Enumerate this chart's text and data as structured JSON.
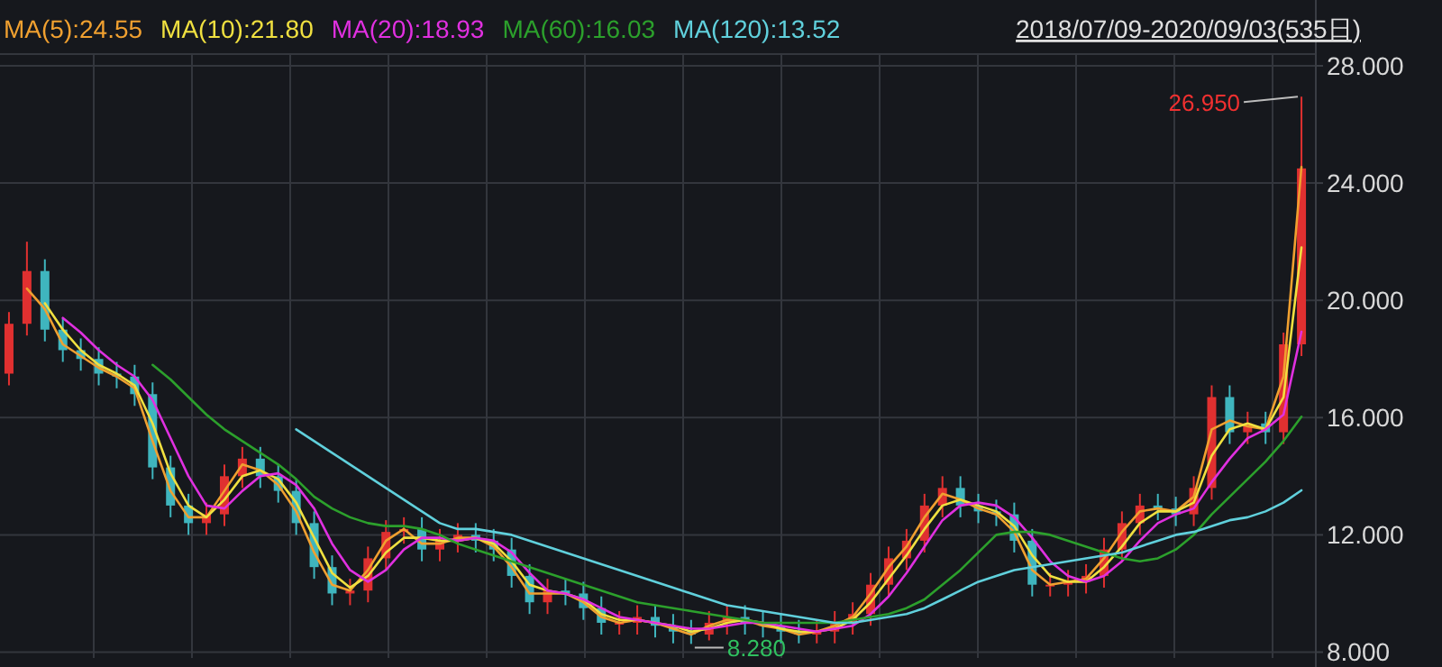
{
  "chart_data": {
    "type": "candlestick",
    "categories": [
      null,
      null,
      null,
      null,
      null,
      null,
      null,
      null,
      null,
      null,
      null,
      null,
      null,
      null,
      null,
      null,
      null,
      null,
      null,
      null,
      null,
      null,
      null,
      null,
      null,
      null,
      null,
      null,
      null,
      null,
      null,
      null,
      null,
      null,
      null,
      null,
      null,
      null,
      null,
      null,
      null,
      null,
      null,
      null,
      null,
      null,
      null,
      null,
      null,
      null,
      null,
      null,
      null,
      null,
      null,
      null,
      null,
      null,
      null,
      null,
      null,
      null,
      null,
      null,
      null,
      null,
      null,
      null,
      null,
      null,
      null,
      null,
      null
    ],
    "ohlc": [
      [
        17.5,
        19.6,
        17.1,
        19.2
      ],
      [
        19.2,
        22.0,
        18.8,
        21.0
      ],
      [
        21.0,
        21.4,
        18.6,
        19.0
      ],
      [
        19.0,
        19.4,
        17.9,
        18.3
      ],
      [
        18.3,
        18.7,
        17.6,
        18.0
      ],
      [
        18.0,
        18.4,
        17.1,
        17.5
      ],
      [
        17.5,
        17.9,
        17.0,
        17.4
      ],
      [
        17.4,
        17.8,
        16.4,
        16.8
      ],
      [
        16.8,
        17.2,
        13.9,
        14.3
      ],
      [
        14.3,
        14.7,
        12.6,
        13.0
      ],
      [
        13.0,
        13.4,
        12.0,
        12.4
      ],
      [
        12.4,
        13.1,
        12.0,
        12.7
      ],
      [
        12.7,
        14.4,
        12.3,
        14.0
      ],
      [
        14.0,
        15.0,
        13.6,
        14.6
      ],
      [
        14.6,
        15.0,
        13.6,
        14.0
      ],
      [
        14.0,
        14.4,
        13.1,
        13.5
      ],
      [
        13.5,
        13.9,
        12.0,
        12.4
      ],
      [
        12.4,
        12.8,
        10.5,
        10.9
      ],
      [
        10.9,
        11.3,
        9.6,
        10.0
      ],
      [
        10.0,
        10.5,
        9.6,
        10.1
      ],
      [
        10.1,
        11.6,
        9.7,
        11.2
      ],
      [
        11.2,
        12.5,
        10.8,
        12.1
      ],
      [
        12.1,
        12.6,
        11.7,
        12.2
      ],
      [
        12.2,
        12.6,
        11.1,
        11.5
      ],
      [
        11.5,
        12.2,
        11.1,
        11.8
      ],
      [
        11.8,
        12.4,
        11.4,
        12.0
      ],
      [
        12.0,
        12.4,
        11.4,
        11.8
      ],
      [
        11.8,
        12.2,
        11.1,
        11.5
      ],
      [
        11.5,
        11.9,
        10.2,
        10.6
      ],
      [
        10.6,
        11.0,
        9.3,
        9.7
      ],
      [
        9.7,
        10.5,
        9.3,
        10.1
      ],
      [
        10.1,
        10.5,
        9.6,
        10.0
      ],
      [
        10.0,
        10.4,
        9.1,
        9.5
      ],
      [
        9.5,
        9.9,
        8.6,
        9.0
      ],
      [
        9.0,
        9.4,
        8.6,
        9.0
      ],
      [
        9.0,
        9.6,
        8.6,
        9.2
      ],
      [
        9.2,
        9.6,
        8.5,
        8.9
      ],
      [
        8.9,
        9.3,
        8.3,
        8.7
      ],
      [
        8.7,
        9.1,
        8.28,
        8.6
      ],
      [
        8.6,
        9.4,
        8.4,
        9.0
      ],
      [
        9.0,
        9.6,
        8.6,
        9.2
      ],
      [
        9.2,
        9.6,
        8.6,
        9.0
      ],
      [
        9.0,
        9.4,
        8.5,
        8.9
      ],
      [
        8.9,
        9.3,
        8.3,
        8.7
      ],
      [
        8.7,
        9.1,
        8.3,
        8.6
      ],
      [
        8.6,
        9.1,
        8.3,
        8.7
      ],
      [
        8.7,
        9.4,
        8.3,
        9.0
      ],
      [
        9.0,
        9.7,
        8.6,
        9.3
      ],
      [
        9.3,
        10.7,
        8.9,
        10.3
      ],
      [
        10.3,
        11.6,
        9.9,
        11.2
      ],
      [
        11.2,
        12.2,
        10.8,
        11.8
      ],
      [
        11.8,
        13.4,
        11.4,
        13.0
      ],
      [
        13.0,
        14.0,
        12.6,
        13.6
      ],
      [
        13.6,
        14.0,
        12.6,
        13.0
      ],
      [
        13.0,
        13.4,
        12.4,
        12.8
      ],
      [
        12.8,
        13.2,
        12.3,
        12.7
      ],
      [
        12.7,
        13.1,
        11.4,
        11.8
      ],
      [
        11.8,
        12.2,
        9.9,
        10.3
      ],
      [
        10.3,
        10.7,
        9.9,
        10.3
      ],
      [
        10.3,
        10.8,
        9.9,
        10.4
      ],
      [
        10.4,
        11.0,
        10.0,
        10.6
      ],
      [
        10.6,
        11.9,
        10.2,
        11.5
      ],
      [
        11.5,
        12.8,
        11.1,
        12.4
      ],
      [
        12.4,
        13.4,
        12.0,
        13.0
      ],
      [
        13.0,
        13.4,
        12.5,
        12.9
      ],
      [
        12.9,
        13.3,
        12.3,
        12.7
      ],
      [
        12.7,
        14.0,
        12.3,
        13.6
      ],
      [
        13.6,
        17.1,
        13.2,
        16.7
      ],
      [
        16.7,
        17.1,
        15.1,
        15.5
      ],
      [
        15.5,
        16.2,
        15.1,
        15.8
      ],
      [
        15.8,
        16.2,
        15.1,
        15.5
      ],
      [
        15.5,
        18.9,
        15.1,
        18.5
      ],
      [
        18.5,
        26.95,
        18.1,
        24.5
      ]
    ],
    "series": [
      {
        "name": "MA(5):24.55",
        "type": "line",
        "color": "#f0a030",
        "values": [
          null,
          20.4,
          19.7,
          18.5,
          18.1,
          17.7,
          17.4,
          17.0,
          15.2,
          13.5,
          12.6,
          12.6,
          13.5,
          14.4,
          14.2,
          13.7,
          12.8,
          11.4,
          10.3,
          10.1,
          10.8,
          11.8,
          12.2,
          11.7,
          11.7,
          11.9,
          11.9,
          11.6,
          10.9,
          10.0,
          10.0,
          10.0,
          9.7,
          9.2,
          9.0,
          9.1,
          9.0,
          8.8,
          8.6,
          8.9,
          9.1,
          9.1,
          8.9,
          8.8,
          8.6,
          8.7,
          8.9,
          9.2,
          10.0,
          10.9,
          11.6,
          12.6,
          13.4,
          13.2,
          12.9,
          12.7,
          12.1,
          10.8,
          10.3,
          10.4,
          10.5,
          11.2,
          12.1,
          12.8,
          12.9,
          12.8,
          13.3,
          15.6,
          15.9,
          15.7,
          15.6,
          17.4,
          24.55
        ]
      },
      {
        "name": "MA(10):21.80",
        "type": "line",
        "color": "#f0e040",
        "values": [
          null,
          null,
          19.9,
          19.0,
          18.3,
          17.8,
          17.5,
          17.1,
          15.8,
          14.1,
          13.0,
          12.6,
          13.2,
          14.0,
          14.2,
          13.9,
          13.1,
          11.9,
          10.7,
          10.2,
          10.6,
          11.4,
          11.9,
          11.9,
          11.8,
          11.8,
          11.9,
          11.7,
          11.1,
          10.3,
          10.1,
          10.0,
          9.8,
          9.3,
          9.1,
          9.1,
          9.0,
          8.9,
          8.7,
          8.8,
          9.0,
          9.1,
          9.0,
          8.8,
          8.7,
          8.7,
          8.8,
          9.1,
          9.7,
          10.5,
          11.3,
          12.2,
          13.0,
          13.2,
          13.0,
          12.8,
          12.3,
          11.3,
          10.6,
          10.4,
          10.4,
          10.9,
          11.6,
          12.4,
          12.8,
          12.8,
          13.1,
          14.7,
          15.6,
          15.8,
          15.6,
          16.7,
          21.8
        ]
      },
      {
        "name": "MA(20):18.93",
        "type": "line",
        "color": "#e030e0",
        "values": [
          null,
          null,
          null,
          19.4,
          18.9,
          18.3,
          17.8,
          17.4,
          16.6,
          15.3,
          14.0,
          13.0,
          12.9,
          13.5,
          14.0,
          14.1,
          13.7,
          12.9,
          11.7,
          10.8,
          10.4,
          10.8,
          11.5,
          11.9,
          11.9,
          11.8,
          11.9,
          11.8,
          11.4,
          10.7,
          10.1,
          10.0,
          9.8,
          9.5,
          9.2,
          9.1,
          9.0,
          8.9,
          8.8,
          8.8,
          8.9,
          9.0,
          9.0,
          8.9,
          8.8,
          8.7,
          8.8,
          8.9,
          9.3,
          9.9,
          10.7,
          11.6,
          12.5,
          13.0,
          13.1,
          13.0,
          12.6,
          11.9,
          11.1,
          10.6,
          10.4,
          10.6,
          11.1,
          11.8,
          12.4,
          12.7,
          12.9,
          13.8,
          14.6,
          15.3,
          15.6,
          16.1,
          18.93
        ]
      },
      {
        "name": "MA(60):16.03",
        "type": "line",
        "color": "#2ca02c",
        "values": [
          null,
          null,
          null,
          null,
          null,
          null,
          null,
          null,
          17.8,
          17.3,
          16.7,
          16.1,
          15.6,
          15.2,
          14.8,
          14.4,
          13.9,
          13.3,
          12.9,
          12.6,
          12.4,
          12.3,
          12.3,
          12.2,
          12.0,
          11.7,
          11.5,
          11.3,
          11.1,
          10.9,
          10.7,
          10.5,
          10.3,
          10.1,
          9.9,
          9.7,
          9.6,
          9.5,
          9.4,
          9.3,
          9.2,
          9.1,
          9.0,
          9.0,
          9.0,
          9.0,
          9.0,
          9.1,
          9.2,
          9.3,
          9.5,
          9.8,
          10.3,
          10.8,
          11.4,
          12.0,
          12.1,
          12.1,
          12.0,
          11.8,
          11.6,
          11.4,
          11.2,
          11.1,
          11.2,
          11.5,
          12.0,
          12.7,
          13.3,
          13.9,
          14.5,
          15.2,
          16.03
        ]
      },
      {
        "name": "MA(120):13.52",
        "type": "line",
        "color": "#60d0dc",
        "values": [
          null,
          null,
          null,
          null,
          null,
          null,
          null,
          null,
          null,
          null,
          null,
          null,
          null,
          null,
          null,
          null,
          15.6,
          15.2,
          14.8,
          14.4,
          14.0,
          13.6,
          13.2,
          12.8,
          12.4,
          12.2,
          12.2,
          12.1,
          12.0,
          11.8,
          11.6,
          11.4,
          11.2,
          11.0,
          10.8,
          10.6,
          10.4,
          10.2,
          10.0,
          9.8,
          9.6,
          9.5,
          9.4,
          9.3,
          9.2,
          9.1,
          9.0,
          9.0,
          9.1,
          9.2,
          9.3,
          9.5,
          9.8,
          10.1,
          10.4,
          10.6,
          10.8,
          10.9,
          11.0,
          11.1,
          11.2,
          11.3,
          11.4,
          11.6,
          11.8,
          12.0,
          12.1,
          12.3,
          12.5,
          12.6,
          12.8,
          13.1,
          13.52
        ]
      }
    ],
    "ylim": [
      7.8,
      28.4
    ],
    "yticks": [
      {
        "value": 8,
        "label": "8.000"
      },
      {
        "value": 12,
        "label": "12.000"
      },
      {
        "value": 16,
        "label": "16.000"
      },
      {
        "value": 20,
        "label": "20.000"
      },
      {
        "value": 24,
        "label": "24.000"
      },
      {
        "value": 28,
        "label": "28.000"
      }
    ],
    "grid": true,
    "legend": "top left",
    "annotations": [
      "26.950",
      "8.280",
      "2018/07/09-2020/09/03(535日)"
    ]
  }
}
